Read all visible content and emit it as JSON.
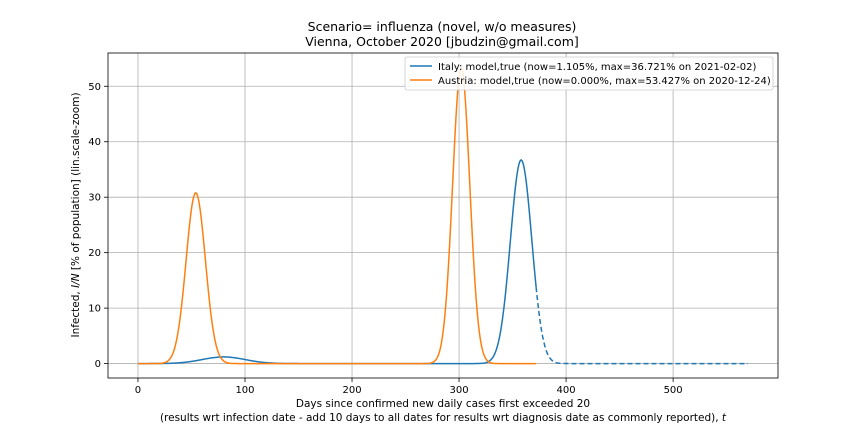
{
  "chart_data": {
    "type": "line",
    "title": "Scenario= influenza (novel, w/o measures)",
    "subtitle": "Vienna, October 2020 [jbudzin@gmail.com]",
    "xlabel": "Days since confirmed new daily cases first exceeded 20",
    "xlabel2_prefix": "(results wrt infection date - add 10 days to all dates for results wrt diagnosis date as commonly reported), ",
    "xlabel2_var": "t",
    "ylabel_prefix": "Infected, ",
    "ylabel_var": "I/N",
    "ylabel_suffix": " [% of population] (lin.scale-zoom)",
    "xlim": [
      -28,
      598
    ],
    "ylim": [
      -2.6,
      56
    ],
    "xticks": [
      0,
      100,
      200,
      300,
      400,
      500
    ],
    "yticks": [
      0,
      10,
      20,
      30,
      40,
      50
    ],
    "grid": true,
    "legend_position": "top-right",
    "series": [
      {
        "name": "Italy: model,true (now=1.105%, max=36.721% on 2021-02-02)",
        "color": "#1f77b4",
        "dashed_from_x": 372,
        "x_end": 570,
        "components": [
          {
            "peak": 1.2,
            "center": 80,
            "sigma": 20
          },
          {
            "peak": 36.72,
            "center": 358,
            "sigma": 10
          }
        ]
      },
      {
        "name": "Austria: model,true (now=0.000%, max=53.427% on 2020-12-24)",
        "color": "#ff7f0e",
        "dashed_from_x": 372,
        "x_end": 372,
        "components": [
          {
            "peak": 30.8,
            "center": 54,
            "sigma": 9
          },
          {
            "peak": 53.43,
            "center": 302,
            "sigma": 8
          }
        ]
      }
    ]
  }
}
